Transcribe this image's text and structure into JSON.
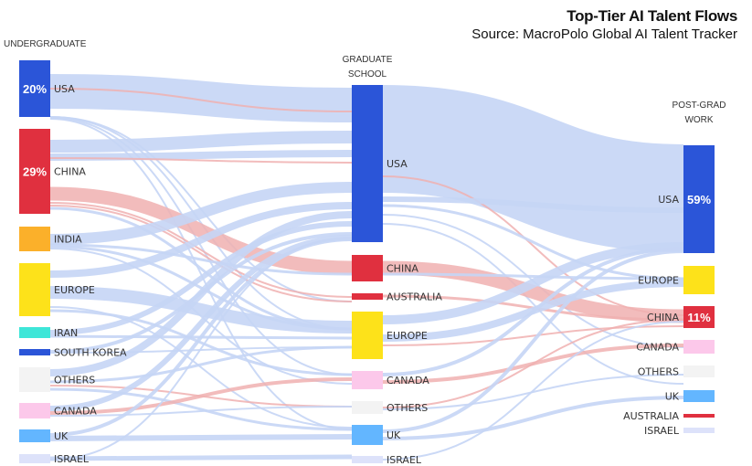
{
  "title": "Top-Tier AI Talent Flows",
  "source": "Source: MacroPolo Global AI Talent Tracker",
  "columns": {
    "undergrad": "UNDERGRADUATE",
    "grad_1": "GRADUATE",
    "grad_2": "SCHOOL",
    "post_1": "POST-GRAD",
    "post_2": "WORK"
  },
  "colors": {
    "blue": "#2b55d8",
    "red": "#e0303f",
    "orange": "#fbb02a",
    "yellow": "#fde21a",
    "cyan": "#3ee6d8",
    "grey": "#f3f3f3",
    "pink": "#fcc8ea",
    "lightblue": "#63b6ff",
    "lavender": "#dde2fa",
    "flow_blue": "#c5d5f5",
    "flow_red": "#f0b0b0"
  },
  "undergrad": [
    {
      "label": "USA",
      "pct": "20%"
    },
    {
      "label": "CHINA",
      "pct": "29%"
    },
    {
      "label": "INDIA"
    },
    {
      "label": "EUROPE"
    },
    {
      "label": "IRAN"
    },
    {
      "label": "SOUTH KOREA"
    },
    {
      "label": "OTHERS"
    },
    {
      "label": "CANADA"
    },
    {
      "label": "UK"
    },
    {
      "label": "ISRAEL"
    }
  ],
  "grad": [
    {
      "label": "USA"
    },
    {
      "label": "CHINA"
    },
    {
      "label": "AUSTRALIA"
    },
    {
      "label": "EUROPE"
    },
    {
      "label": "CANADA"
    },
    {
      "label": "OTHERS"
    },
    {
      "label": "UK"
    },
    {
      "label": "ISRAEL"
    }
  ],
  "post": [
    {
      "label": "USA",
      "pct": "59%"
    },
    {
      "label": "EUROPE"
    },
    {
      "label": "CHINA",
      "pct": "11%"
    },
    {
      "label": "CANADA"
    },
    {
      "label": "OTHERS"
    },
    {
      "label": "UK"
    },
    {
      "label": "AUSTRALIA"
    },
    {
      "label": "ISRAEL"
    }
  ]
}
